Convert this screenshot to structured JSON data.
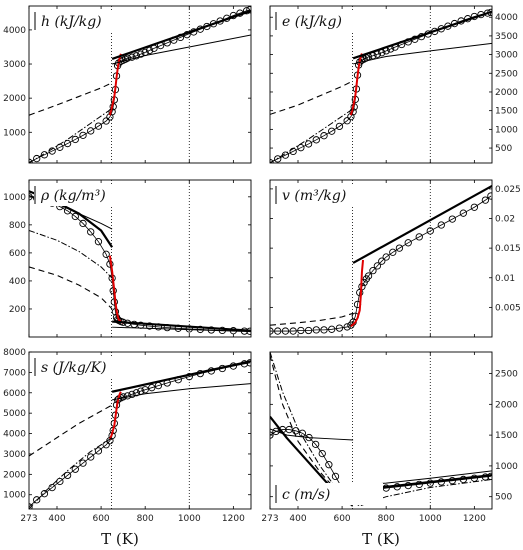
{
  "figure": {
    "xlabel_left": "T (K)",
    "xlabel_right": "T (K)"
  },
  "x_ticks": [
    "273",
    "400",
    "600",
    "800",
    "1000",
    "1200"
  ],
  "chart_data": [
    {
      "type": "line",
      "id": "h",
      "title": "h (kJ/kg)",
      "xlim": [
        273,
        1280
      ],
      "ylim": [
        100,
        4700
      ],
      "yticks": [
        1000,
        2000,
        3000,
        4000
      ],
      "ytick_side": "left",
      "grid": false,
      "series": [
        {
          "style": "circles",
          "x": [
            273,
            308,
            343,
            378,
            413,
            448,
            483,
            518,
            553,
            588,
            623,
            640,
            650,
            655,
            660,
            665,
            670,
            675,
            680,
            690,
            700,
            710,
            720,
            740,
            760,
            780,
            800,
            820,
            840,
            870,
            900,
            930,
            960,
            990,
            1020,
            1050,
            1080,
            1110,
            1140,
            1170,
            1200,
            1230,
            1260,
            1275
          ],
          "y": [
            120,
            230,
            340,
            450,
            560,
            670,
            790,
            910,
            1040,
            1180,
            1330,
            1450,
            1600,
            1750,
            1950,
            2250,
            2650,
            2950,
            3030,
            3080,
            3110,
            3140,
            3170,
            3200,
            3240,
            3290,
            3340,
            3400,
            3460,
            3540,
            3620,
            3700,
            3780,
            3860,
            3940,
            4020,
            4100,
            4180,
            4260,
            4340,
            4420,
            4490,
            4560,
            4590
          ]
        },
        {
          "style": "red",
          "x": [
            640,
            650,
            660,
            665,
            670,
            675,
            680,
            685,
            690
          ],
          "y": [
            1500,
            1750,
            2050,
            2300,
            2600,
            2850,
            3050,
            3200,
            3300
          ]
        },
        {
          "style": "thick",
          "x": [
            650,
            1280
          ],
          "y": [
            3150,
            4560
          ]
        },
        {
          "style": "thin",
          "x": [
            650,
            800,
            1000,
            1280
          ],
          "y": [
            3000,
            3250,
            3500,
            3850
          ]
        },
        {
          "style": "dashed",
          "x": [
            273,
            400,
            500,
            600,
            650
          ],
          "y": [
            1500,
            1800,
            2050,
            2300,
            2450
          ]
        },
        {
          "style": "dashdot",
          "x": [
            273,
            350,
            450,
            550,
            650
          ],
          "y": [
            100,
            400,
            800,
            1250,
            1700
          ]
        }
      ]
    },
    {
      "type": "line",
      "id": "e",
      "title": "e (kJ/kg)",
      "xlim": [
        273,
        1280
      ],
      "ylim": [
        100,
        4300
      ],
      "yticks": [
        500,
        1000,
        1500,
        2000,
        2500,
        3000,
        3500,
        4000
      ],
      "ytick_side": "right",
      "grid": false,
      "series": [
        {
          "style": "circles",
          "x": [
            273,
            308,
            343,
            378,
            413,
            448,
            483,
            518,
            553,
            588,
            623,
            640,
            650,
            655,
            660,
            665,
            670,
            675,
            680,
            690,
            700,
            710,
            720,
            740,
            760,
            780,
            800,
            820,
            840,
            870,
            900,
            930,
            960,
            990,
            1020,
            1050,
            1080,
            1110,
            1140,
            1170,
            1200,
            1230,
            1260,
            1275
          ],
          "y": [
            110,
            210,
            310,
            410,
            510,
            610,
            720,
            830,
            950,
            1080,
            1230,
            1340,
            1470,
            1600,
            1800,
            2080,
            2450,
            2720,
            2800,
            2850,
            2880,
            2910,
            2940,
            2970,
            3010,
            3050,
            3100,
            3150,
            3200,
            3270,
            3340,
            3410,
            3480,
            3550,
            3620,
            3690,
            3760,
            3830,
            3900,
            3960,
            4020,
            4070,
            4110,
            4130
          ]
        },
        {
          "style": "red",
          "x": [
            640,
            650,
            660,
            665,
            670,
            675,
            680,
            685,
            690
          ],
          "y": [
            1380,
            1600,
            1900,
            2150,
            2420,
            2650,
            2830,
            2950,
            3030
          ]
        },
        {
          "style": "thick",
          "x": [
            650,
            1280
          ],
          "y": [
            2900,
            4150
          ]
        },
        {
          "style": "thin",
          "x": [
            650,
            800,
            1000,
            1280
          ],
          "y": [
            2750,
            2950,
            3100,
            3300
          ]
        },
        {
          "style": "dashed",
          "x": [
            273,
            400,
            500,
            600,
            650
          ],
          "y": [
            1400,
            1650,
            1900,
            2150,
            2300
          ]
        },
        {
          "style": "dashdot",
          "x": [
            273,
            350,
            450,
            550,
            650
          ],
          "y": [
            100,
            380,
            750,
            1150,
            1550
          ]
        }
      ]
    },
    {
      "type": "line",
      "id": "rho",
      "title": "ρ (kg/m³)",
      "xlim": [
        273,
        1280
      ],
      "ylim": [
        0,
        1120
      ],
      "yticks": [
        200,
        400,
        600,
        800,
        1000
      ],
      "ytick_side": "left",
      "grid": false,
      "series": [
        {
          "style": "circles",
          "x": [
            273,
            308,
            343,
            378,
            413,
            448,
            483,
            518,
            553,
            588,
            623,
            640,
            650,
            655,
            660,
            665,
            670,
            675,
            680,
            690,
            700,
            720,
            750,
            780,
            820,
            860,
            900,
            950,
            1000,
            1050,
            1100,
            1150,
            1200,
            1250,
            1275
          ],
          "y": [
            1000,
            990,
            975,
            955,
            930,
            900,
            860,
            810,
            750,
            680,
            590,
            520,
            420,
            330,
            250,
            180,
            140,
            125,
            118,
            110,
            105,
            98,
            90,
            84,
            78,
            72,
            67,
            62,
            58,
            54,
            50,
            47,
            45,
            42,
            41
          ]
        },
        {
          "style": "red",
          "x": [
            640,
            650,
            660,
            665,
            670,
            675,
            680,
            690,
            700
          ],
          "y": [
            580,
            470,
            330,
            250,
            190,
            150,
            125,
            108,
            100
          ]
        },
        {
          "style": "thick",
          "x": [
            273,
            400,
            500,
            600,
            650
          ],
          "y": [
            1040,
            960,
            880,
            760,
            640
          ]
        },
        {
          "style": "thin",
          "x": [
            273,
            400,
            500,
            600,
            650
          ],
          "y": [
            1010,
            950,
            880,
            810,
            770
          ]
        },
        {
          "style": "dashdot",
          "x": [
            273,
            400,
            500,
            600,
            650
          ],
          "y": [
            760,
            690,
            610,
            500,
            420
          ]
        },
        {
          "style": "dashed",
          "x": [
            273,
            400,
            500,
            600,
            650
          ],
          "y": [
            500,
            440,
            370,
            280,
            200
          ]
        },
        {
          "style": "thick",
          "x": [
            650,
            1280
          ],
          "y": [
            110,
            45
          ]
        },
        {
          "style": "thin",
          "x": [
            650,
            1280
          ],
          "y": [
            70,
            38
          ]
        }
      ]
    },
    {
      "type": "line",
      "id": "v",
      "title": "v (m³/kg)",
      "xlim": [
        273,
        1280
      ],
      "ylim": [
        0,
        0.0265
      ],
      "yticks": [
        0.005,
        0.01,
        0.015,
        0.02,
        0.025
      ],
      "ytick_side": "right",
      "grid": false,
      "series": [
        {
          "style": "circles",
          "x": [
            273,
            308,
            343,
            378,
            413,
            448,
            483,
            518,
            553,
            588,
            623,
            640,
            650,
            660,
            670,
            680,
            690,
            700,
            710,
            720,
            740,
            760,
            780,
            800,
            830,
            860,
            900,
            950,
            1000,
            1050,
            1100,
            1150,
            1200,
            1250,
            1275
          ],
          "y": [
            0.001,
            0.001,
            0.001,
            0.001,
            0.0011,
            0.0011,
            0.0012,
            0.0012,
            0.0013,
            0.0015,
            0.0017,
            0.002,
            0.0025,
            0.0035,
            0.0055,
            0.0075,
            0.0085,
            0.0092,
            0.0098,
            0.0103,
            0.0112,
            0.012,
            0.0128,
            0.0135,
            0.0143,
            0.015,
            0.0159,
            0.0169,
            0.0179,
            0.0189,
            0.0199,
            0.0209,
            0.0219,
            0.0231,
            0.0238
          ]
        },
        {
          "style": "red",
          "x": [
            640,
            650,
            660,
            670,
            680,
            685,
            690,
            695
          ],
          "y": [
            0.0018,
            0.0021,
            0.0025,
            0.0032,
            0.0045,
            0.007,
            0.011,
            0.013
          ]
        },
        {
          "style": "thick",
          "x": [
            650,
            1280
          ],
          "y": [
            0.0125,
            0.0255
          ]
        },
        {
          "style": "dashed",
          "x": [
            273,
            400,
            500,
            600,
            650
          ],
          "y": [
            0.002,
            0.0024,
            0.0028,
            0.0034,
            0.004
          ]
        }
      ]
    },
    {
      "type": "line",
      "id": "s",
      "title": "s (J/kg/K)",
      "xlim": [
        273,
        1280
      ],
      "ylim": [
        300,
        8000
      ],
      "yticks": [
        1000,
        2000,
        3000,
        4000,
        5000,
        6000,
        7000,
        8000
      ],
      "ytick_side": "left",
      "grid": false,
      "series": [
        {
          "style": "circles",
          "x": [
            273,
            308,
            343,
            378,
            413,
            448,
            483,
            518,
            553,
            588,
            623,
            640,
            650,
            655,
            660,
            665,
            670,
            675,
            680,
            690,
            700,
            720,
            740,
            760,
            780,
            800,
            830,
            860,
            900,
            950,
            1000,
            1050,
            1100,
            1150,
            1200,
            1250,
            1275
          ],
          "y": [
            400,
            750,
            1050,
            1350,
            1650,
            1950,
            2250,
            2550,
            2850,
            3150,
            3450,
            3650,
            3900,
            4150,
            4500,
            4900,
            5400,
            5650,
            5700,
            5750,
            5800,
            5850,
            5920,
            6000,
            6080,
            6150,
            6250,
            6350,
            6480,
            6640,
            6790,
            6940,
            7070,
            7190,
            7310,
            7420,
            7470
          ]
        },
        {
          "style": "red",
          "x": [
            640,
            650,
            660,
            665,
            670,
            675,
            680,
            685,
            690
          ],
          "y": [
            3700,
            4000,
            4400,
            4800,
            5200,
            5550,
            5800,
            5950,
            6050
          ]
        },
        {
          "style": "thick",
          "x": [
            650,
            1280
          ],
          "y": [
            6050,
            7550
          ]
        },
        {
          "style": "thin",
          "x": [
            650,
            800,
            1000,
            1280
          ],
          "y": [
            5650,
            5950,
            6200,
            6450
          ]
        },
        {
          "style": "dashed",
          "x": [
            273,
            400,
            500,
            600,
            650
          ],
          "y": [
            2900,
            3800,
            4500,
            5100,
            5400
          ]
        },
        {
          "style": "dashdot",
          "x": [
            273,
            350,
            450,
            550,
            650
          ],
          "y": [
            300,
            1200,
            2200,
            3100,
            3800
          ]
        }
      ]
    },
    {
      "type": "line",
      "id": "c",
      "title": "c (m/s)",
      "xlim": [
        273,
        1280
      ],
      "ylim": [
        300,
        2850
      ],
      "yticks": [
        500,
        1000,
        1500,
        2000,
        2500
      ],
      "ytick_side": "right",
      "grid": false,
      "series": [
        {
          "style": "circles",
          "x": [
            273,
            300,
            330,
            360,
            390,
            420,
            450,
            480,
            510,
            540,
            570,
            600,
            620,
            640,
            660,
            680,
            700,
            730,
            760,
            800,
            850,
            900,
            950,
            1000,
            1050,
            1100,
            1150,
            1200,
            1250,
            1275
          ],
          "y": [
            1500,
            1560,
            1590,
            1590,
            1570,
            1530,
            1460,
            1350,
            1200,
            1020,
            830,
            640,
            520,
            420,
            500,
            560,
            580,
            600,
            620,
            640,
            660,
            680,
            700,
            720,
            740,
            760,
            780,
            800,
            820,
            830
          ]
        },
        {
          "style": "thick",
          "x": [
            273,
            350,
            450,
            550,
            600,
            650,
            700,
            800,
            1000,
            1280
          ],
          "y": [
            1800,
            1450,
            1050,
            650,
            430,
            560,
            620,
            660,
            740,
            850
          ]
        },
        {
          "style": "thin",
          "x": [
            273,
            350,
            450,
            550,
            650
          ],
          "y": [
            1600,
            1500,
            1460,
            1440,
            1420
          ]
        },
        {
          "style": "thin",
          "x": [
            650,
            800,
            1000,
            1280
          ],
          "y": [
            680,
            720,
            800,
            920
          ]
        },
        {
          "style": "dashed",
          "x": [
            273,
            330,
            400,
            500,
            600,
            660
          ],
          "y": [
            2800,
            2000,
            1400,
            900,
            500,
            300
          ]
        },
        {
          "style": "dashdot",
          "x": [
            273,
            330,
            400,
            500,
            600,
            680,
            800,
            1000,
            1280
          ],
          "y": [
            2850,
            2200,
            1600,
            1000,
            500,
            350,
            500,
            650,
            780
          ]
        }
      ]
    }
  ]
}
